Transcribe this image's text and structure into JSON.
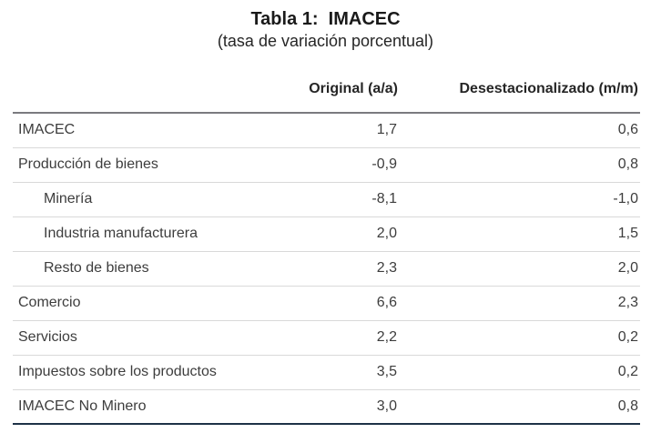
{
  "title": "Tabla 1:  IMACEC",
  "subtitle": "(tasa de variación porcentual)",
  "header": {
    "label_column": "",
    "original": "Original (a/a)",
    "desestacionalizado": "Desestacionalizado (m/m)"
  },
  "rows": [
    {
      "label": "IMACEC",
      "indent": false,
      "original": "1,7",
      "desestacionalizado": "0,6"
    },
    {
      "label": "Producción de bienes",
      "indent": false,
      "original": "-0,9",
      "desestacionalizado": "0,8"
    },
    {
      "label": "Minería",
      "indent": true,
      "original": "-8,1",
      "desestacionalizado": "-1,0"
    },
    {
      "label": "Industria manufacturera",
      "indent": true,
      "original": "2,0",
      "desestacionalizado": "1,5"
    },
    {
      "label": "Resto de bienes",
      "indent": true,
      "original": "2,3",
      "desestacionalizado": "2,0"
    },
    {
      "label": "Comercio",
      "indent": false,
      "original": "6,6",
      "desestacionalizado": "2,3"
    },
    {
      "label": "Servicios",
      "indent": false,
      "original": "2,2",
      "desestacionalizado": "0,2"
    },
    {
      "label": "Impuestos sobre los productos",
      "indent": false,
      "original": "3,5",
      "desestacionalizado": "0,2"
    },
    {
      "label": "IMACEC No Minero",
      "indent": false,
      "original": "3,0",
      "desestacionalizado": "0,8"
    }
  ],
  "colors": {
    "background": "#ffffff",
    "title_text": "#1a1a1a",
    "body_text": "#3d3d3d",
    "header_rule": "#7a7a7f",
    "row_rule": "#d9d9d9",
    "bottom_rule": "#1e3247"
  },
  "chart_data": {
    "type": "table",
    "title": "Tabla 1: IMACEC",
    "subtitle": "(tasa de variación porcentual)",
    "columns": [
      "",
      "Original (a/a)",
      "Desestacionalizado (m/m)"
    ],
    "rows": [
      [
        "IMACEC",
        1.7,
        0.6
      ],
      [
        "Producción de bienes",
        -0.9,
        0.8
      ],
      [
        "Minería",
        -8.1,
        -1.0
      ],
      [
        "Industria manufacturera",
        2.0,
        1.5
      ],
      [
        "Resto de bienes",
        2.3,
        2.0
      ],
      [
        "Comercio",
        6.6,
        2.3
      ],
      [
        "Servicios",
        2.2,
        0.2
      ],
      [
        "Impuestos sobre los productos",
        3.5,
        0.2
      ],
      [
        "IMACEC No Minero",
        3.0,
        0.8
      ]
    ],
    "indented_rows": [
      "Minería",
      "Industria manufacturera",
      "Resto de bienes"
    ],
    "decimal_separator": ",",
    "notes": "values are percentage variation rates; negative values shown with leading minus sign"
  }
}
